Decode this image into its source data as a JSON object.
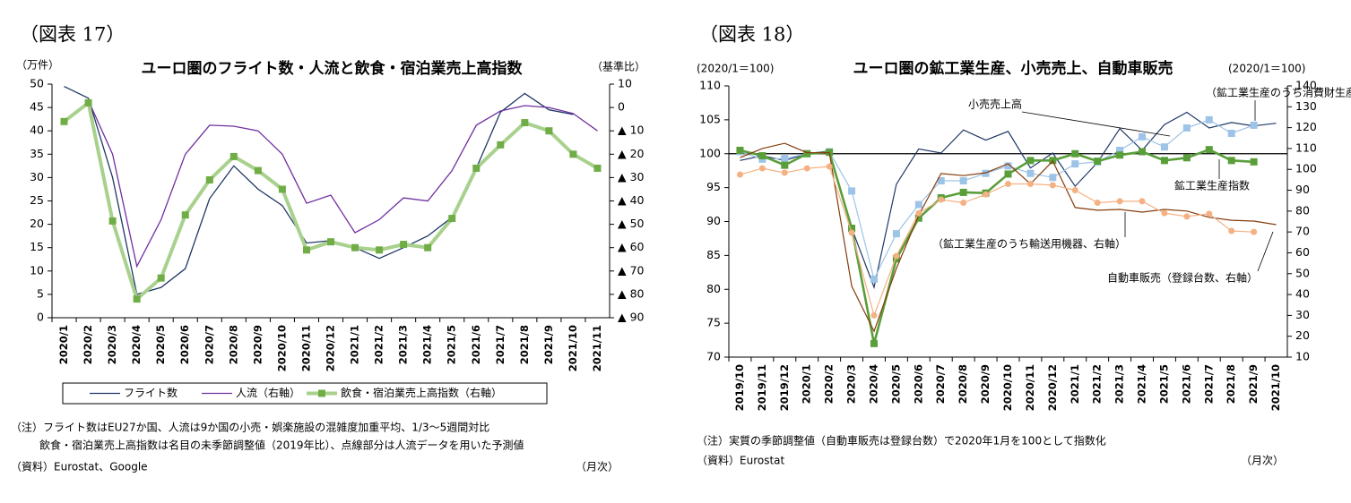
{
  "chart_data": [
    {
      "type": "line",
      "figure_label": "（図表 17）",
      "title": "ユーロ圏のフライト数・人流と飲食・宿泊業売上高指数",
      "ylabel": "（万件）",
      "y2label": "（基準比）",
      "categories": [
        "2020/1",
        "2020/2",
        "2020/3",
        "2020/4",
        "2020/5",
        "2020/6",
        "2020/7",
        "2020/8",
        "2020/9",
        "2020/10",
        "2020/11",
        "2020/12",
        "2021/1",
        "2021/2",
        "2021/3",
        "2021/4",
        "2021/5",
        "2021/6",
        "2021/7",
        "2021/8",
        "2021/9",
        "2021/10",
        "2021/11"
      ],
      "ylim": [
        0,
        50
      ],
      "yticks": [
        0,
        5,
        10,
        15,
        20,
        25,
        30,
        35,
        40,
        45,
        50
      ],
      "y2lim": [
        -90,
        10
      ],
      "y2ticks": [
        10,
        0,
        {
          "value": -10,
          "label": "▲ 10"
        },
        {
          "value": -20,
          "label": "▲ 20"
        },
        {
          "value": -30,
          "label": "▲ 30"
        },
        {
          "value": -40,
          "label": "▲ 40"
        },
        {
          "value": -50,
          "label": "▲ 50"
        },
        {
          "value": -60,
          "label": "▲ 60"
        },
        {
          "value": -70,
          "label": "▲ 70"
        },
        {
          "value": -80,
          "label": "▲ 80"
        },
        {
          "value": -90,
          "label": "▲ 90"
        }
      ],
      "grid": false,
      "legend": "bottom",
      "series": [
        {
          "name": "フライト数",
          "color": "#1f3864",
          "width": 1.3,
          "marker": null,
          "values": [
            49.5,
            47,
            30,
            5,
            6.5,
            10.5,
            25.5,
            32.5,
            27.5,
            24,
            16,
            16.5,
            15,
            12.7,
            15,
            17.5,
            21.5,
            32,
            44,
            48,
            44.5,
            43.5,
            null
          ]
        },
        {
          "name": "人流（右軸）",
          "color": "#7030a0",
          "width": 1.3,
          "marker": null,
          "axis": "y2",
          "values": [
            null,
            3,
            -20,
            -68,
            -48,
            -20,
            -7.6,
            -8,
            -10,
            -20,
            -41,
            -37.5,
            -53.6,
            -48,
            -38.7,
            -40,
            -27,
            -7.6,
            -1.5,
            0.8,
            0,
            -2.6,
            -10
          ]
        },
        {
          "name": "飲食・宿泊業売上高指数（右軸）",
          "color": "#a9d18e",
          "marker_color": "#70ad47",
          "width": 4,
          "marker": "square",
          "axis": "y2",
          "values": [
            -6,
            2,
            -48.6,
            -82,
            -73,
            -46,
            -31,
            -21,
            -27,
            -35,
            -61,
            -57.5,
            -60,
            -61,
            -58.6,
            -60,
            -47.5,
            -26,
            -16,
            -6.5,
            -10,
            -20,
            -26
          ]
        }
      ],
      "notes": [
        "（注）フライト数はEU27か国、人流は9か国の小売・娯楽施設の混雑度加重平均、1/3～5週間対比",
        "飲食・宿泊業売上高指数は名目の未季節調整値（2019年比）、点線部分は人流データを用いた予測値",
        "（資料）Eurostat、Google"
      ],
      "frequency": "（月次）"
    },
    {
      "type": "line",
      "figure_label": "（図表 18）",
      "title": "ユーロ圏の鉱工業生産、小売売上、自動車販売",
      "ylabel": "(2020/1＝100)",
      "y2label": "(2020/1＝100)",
      "categories": [
        "2019/10",
        "2019/11",
        "2019/12",
        "2020/1",
        "2020/2",
        "2020/3",
        "2020/4",
        "2020/5",
        "2020/6",
        "2020/7",
        "2020/8",
        "2020/9",
        "2020/10",
        "2020/11",
        "2020/12",
        "2021/1",
        "2021/2",
        "2021/3",
        "2021/4",
        "2021/5",
        "2021/6",
        "2021/7",
        "2021/8",
        "2021/9",
        "2021/10"
      ],
      "ylim": [
        70,
        110
      ],
      "yticks": [
        70,
        75,
        80,
        85,
        90,
        95,
        100,
        105,
        110
      ],
      "y2lim": [
        10,
        140
      ],
      "y2ticks": [
        10,
        20,
        30,
        40,
        50,
        60,
        70,
        80,
        90,
        100,
        110,
        120,
        130,
        140
      ],
      "grid": false,
      "hline": 100,
      "series": [
        {
          "name": "小売売上高",
          "color": "#1f3864",
          "width": 1.2,
          "marker": null,
          "values": [
            99,
            99.7,
            99,
            100,
            100.4,
            89,
            80.3,
            95.5,
            100.7,
            100.1,
            103.5,
            102,
            103.3,
            97.9,
            100.1,
            95.2,
            98.7,
            103.7,
            100.5,
            104.3,
            106.1,
            103.8,
            104.6,
            104.1,
            104.5
          ]
        },
        {
          "name": "（鉱工業生産のうち消費財生産）",
          "color": "#9dc3e6",
          "width": 1.2,
          "marker": "square",
          "values": [
            100.3,
            99.2,
            99.3,
            100,
            100.3,
            94.5,
            81.5,
            88.2,
            92.5,
            96,
            96,
            97.1,
            98.2,
            97.1,
            96.5,
            98.5,
            98.8,
            100.5,
            102.5,
            101,
            103.8,
            105,
            103,
            104.2,
            null
          ]
        },
        {
          "name": "鉱工業生産指数",
          "color": "#5a9e3a",
          "width": 2.6,
          "marker": "square",
          "values": [
            100.5,
            99.7,
            98.3,
            100,
            100.2,
            89,
            72,
            84.5,
            90.5,
            93.5,
            94.3,
            94.2,
            97,
            99,
            99,
            100,
            98.9,
            99.8,
            100.3,
            99,
            99.4,
            100.6,
            99,
            98.8,
            null
          ]
        },
        {
          "name": "（鉱工業生産のうち輸送用機器、右軸）",
          "color": "#843c0c",
          "width": 1.2,
          "marker": null,
          "axis": "y2",
          "values": [
            105.6,
            110,
            112.5,
            108,
            108,
            44,
            22.4,
            52.5,
            78,
            98,
            97,
            98.4,
            102.7,
            93,
            104,
            81.7,
            80.4,
            80.8,
            79.5,
            80.8,
            80,
            77,
            75.6,
            75.2,
            73.5
          ]
        },
        {
          "name": "自動車販売（登録台数、右軸）",
          "color": "#f4b183",
          "width": 1.2,
          "marker": "circle",
          "axis": "y2",
          "values": [
            97.5,
            100.5,
            98.4,
            100.5,
            101.4,
            69.6,
            30,
            58.5,
            79,
            85.5,
            84,
            88,
            93,
            93,
            92.4,
            90,
            84,
            84.7,
            84.7,
            79,
            77.4,
            78.7,
            70.5,
            70,
            null
          ]
        }
      ],
      "notes": [
        "（注）実質の季節調整値（自動車販売は登録台数）で2020年1月を100として指数化",
        "（資料）Eurostat"
      ],
      "frequency": "（月次）"
    }
  ]
}
